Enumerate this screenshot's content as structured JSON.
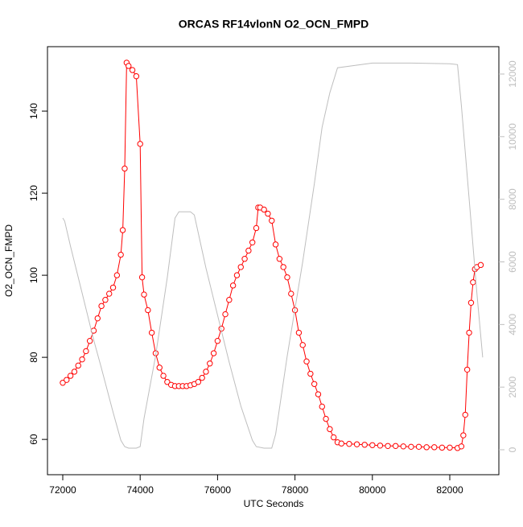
{
  "chart_data": {
    "type": "line",
    "title": "ORCAS RF14vlonN O2_OCN_FMPD",
    "x_label": "UTC Seconds",
    "y_label": "O2_OCN_FMPD",
    "xlim": [
      71605,
      83268
    ],
    "ylim": [
      51.4,
      155.7
    ],
    "y2lim": [
      -797,
      12874
    ],
    "xticks": [
      72000,
      74000,
      76000,
      78000,
      80000,
      82000
    ],
    "yticks": [
      60,
      80,
      100,
      120,
      140
    ],
    "y2ticks": [
      0,
      2000,
      4000,
      6000,
      8000,
      10000,
      12000
    ],
    "grid": false,
    "series": [
      {
        "color": "#ff0000",
        "markers": true,
        "x": [
          72000,
          72100,
          72200,
          72300,
          72400,
          72500,
          72600,
          72700,
          72800,
          72900,
          73000,
          73100,
          73200,
          73300,
          73400,
          73500,
          73550,
          73600,
          73650,
          73700,
          73800,
          73900,
          74000,
          74050,
          74100,
          74200,
          74300,
          74400,
          74500,
          74600,
          74700,
          74800,
          74900,
          75000,
          75100,
          75200,
          75300,
          75400,
          75500,
          75600,
          75700,
          75800,
          75900,
          76000,
          76100,
          76200,
          76300,
          76400,
          76500,
          76600,
          76700,
          76800,
          76900,
          77000,
          77050,
          77100,
          77200,
          77300,
          77400,
          77500,
          77600,
          77700,
          77800,
          77900,
          78000,
          78100,
          78200,
          78300,
          78400,
          78500,
          78600,
          78700,
          78800,
          78900,
          79000,
          79100,
          79200,
          79400,
          79600,
          79800,
          80000,
          80200,
          80400,
          80600,
          80800,
          81000,
          81200,
          81400,
          81600,
          81800,
          82000,
          82200,
          82300,
          82350,
          82400,
          82450,
          82500,
          82550,
          82600,
          82650,
          82700,
          82800
        ],
        "values": [
          73.8,
          74.5,
          75.5,
          76.5,
          78,
          79.5,
          81.5,
          84,
          86.5,
          89.5,
          92.5,
          94,
          95.5,
          97,
          100,
          105,
          111,
          126,
          151.8,
          151,
          150,
          148.5,
          132,
          99.5,
          95.3,
          91.5,
          86,
          81,
          77.5,
          75.5,
          74,
          73.3,
          73,
          73,
          73,
          73,
          73.2,
          73.5,
          74,
          75,
          76.5,
          78.5,
          81,
          84,
          87,
          90.5,
          94,
          97.5,
          100,
          102,
          104,
          106,
          108,
          111.5,
          116.5,
          116.5,
          116,
          115,
          113.3,
          107.5,
          104,
          102,
          99.5,
          95.5,
          91.5,
          86,
          83,
          79,
          76,
          73.5,
          71,
          68,
          65,
          62.5,
          60.5,
          59.3,
          59,
          58.9,
          58.8,
          58.7,
          58.6,
          58.5,
          58.4,
          58.4,
          58.3,
          58.2,
          58.2,
          58.1,
          58.1,
          58,
          58,
          57.9,
          58.3,
          61,
          66,
          77,
          86,
          93.3,
          98.3,
          101.5,
          102,
          102.5
        ]
      },
      {
        "color": "#bebebe",
        "axis": "y2",
        "markers": false,
        "x": [
          72000,
          72050,
          72200,
          72500,
          72800,
          73000,
          73300,
          73500,
          73600,
          73700,
          73800,
          73900,
          74000,
          74100,
          74400,
          74700,
          74900,
          75000,
          75300,
          75400,
          75700,
          76000,
          76300,
          76600,
          76900,
          77000,
          77200,
          77400,
          77500,
          77800,
          78200,
          78500,
          78700,
          78900,
          79100,
          80000,
          81000,
          82000,
          82200,
          82300,
          82500,
          82700,
          82850
        ],
        "values": [
          7400,
          7300,
          6500,
          5000,
          3500,
          2600,
          1200,
          300,
          100,
          50,
          50,
          50,
          100,
          1000,
          3000,
          5500,
          7400,
          7600,
          7600,
          7500,
          5800,
          4300,
          2800,
          1400,
          300,
          100,
          50,
          50,
          500,
          3000,
          6000,
          8500,
          10300,
          11400,
          12200,
          12350,
          12350,
          12330,
          12300,
          11000,
          8000,
          5000,
          2950
        ]
      }
    ]
  }
}
